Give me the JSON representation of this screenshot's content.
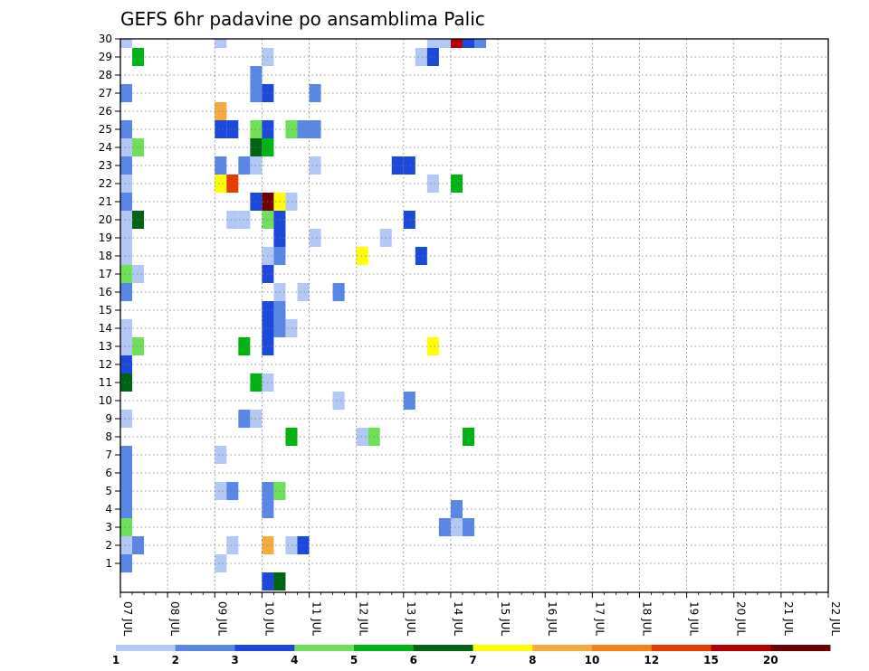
{
  "chart_data": {
    "type": "heatmap",
    "title": "GEFS 6hr padavine po ansamblima Palic",
    "xlabel": "",
    "ylabel": "",
    "x_tick_labels": [
      "07 JUL",
      "08 JUL",
      "09 JUL",
      "10 JUL",
      "11 JUL",
      "12 JUL",
      "13 JUL",
      "14 JUL",
      "15 JUL",
      "16 JUL",
      "17 JUL",
      "18 JUL",
      "19 JUL",
      "20 JUL",
      "21 JUL",
      "22 JUL"
    ],
    "y_tick_labels": [
      "1",
      "2",
      "3",
      "4",
      "5",
      "6",
      "7",
      "8",
      "9",
      "10",
      "11",
      "12",
      "13",
      "14",
      "15",
      "16",
      "17",
      "18",
      "19",
      "20",
      "21",
      "22",
      "23",
      "24",
      "25",
      "26",
      "27",
      "28",
      "29",
      "30"
    ],
    "xlim": [
      0,
      60
    ],
    "ylim": [
      0,
      30
    ],
    "grid": true,
    "step_days": 0.25,
    "colorbar": {
      "labels": [
        "1",
        "2",
        "3",
        "4",
        "5",
        "6",
        "7",
        "8",
        "10",
        "12",
        "15",
        "20"
      ],
      "colors": [
        "#b3c8f4",
        "#5a86e8",
        "#1c48dc",
        "#6fe05a",
        "#00b414",
        "#006414",
        "#ffff00",
        "#f6aa3c",
        "#f58214",
        "#e63c00",
        "#b40000",
        "#6e0000"
      ]
    },
    "cells_note": "each cell: [member, step (6h index from 07 JUL 00z), color class 0-11]",
    "cells": [
      [
        30,
        0,
        0
      ],
      [
        30,
        8,
        0
      ],
      [
        30,
        26,
        0
      ],
      [
        30,
        27,
        0
      ],
      [
        30,
        28,
        10
      ],
      [
        30,
        29,
        2
      ],
      [
        30,
        30,
        1
      ],
      [
        29,
        1,
        4
      ],
      [
        29,
        12,
        0
      ],
      [
        29,
        25,
        0
      ],
      [
        29,
        26,
        2
      ],
      [
        28,
        11,
        1
      ],
      [
        27,
        0,
        1
      ],
      [
        27,
        11,
        1
      ],
      [
        27,
        12,
        2
      ],
      [
        27,
        16,
        1
      ],
      [
        26,
        8,
        7
      ],
      [
        25,
        0,
        1
      ],
      [
        25,
        8,
        2
      ],
      [
        25,
        9,
        2
      ],
      [
        25,
        11,
        3
      ],
      [
        25,
        12,
        2
      ],
      [
        25,
        14,
        3
      ],
      [
        25,
        15,
        1
      ],
      [
        25,
        16,
        1
      ],
      [
        24,
        0,
        0
      ],
      [
        24,
        1,
        3
      ],
      [
        24,
        11,
        5
      ],
      [
        24,
        12,
        4
      ],
      [
        23,
        0,
        1
      ],
      [
        23,
        8,
        1
      ],
      [
        23,
        10,
        1
      ],
      [
        23,
        11,
        0
      ],
      [
        23,
        16,
        0
      ],
      [
        23,
        23,
        2
      ],
      [
        23,
        24,
        2
      ],
      [
        22,
        0,
        0
      ],
      [
        22,
        8,
        6
      ],
      [
        22,
        9,
        9
      ],
      [
        22,
        26,
        0
      ],
      [
        22,
        28,
        4
      ],
      [
        21,
        0,
        1
      ],
      [
        21,
        11,
        2
      ],
      [
        21,
        12,
        11
      ],
      [
        21,
        13,
        6
      ],
      [
        21,
        14,
        0
      ],
      [
        20,
        0,
        0
      ],
      [
        20,
        1,
        5
      ],
      [
        20,
        9,
        0
      ],
      [
        20,
        10,
        0
      ],
      [
        20,
        12,
        3
      ],
      [
        20,
        13,
        2
      ],
      [
        20,
        24,
        2
      ],
      [
        19,
        0,
        0
      ],
      [
        19,
        13,
        2
      ],
      [
        19,
        16,
        0
      ],
      [
        19,
        22,
        0
      ],
      [
        18,
        0,
        0
      ],
      [
        18,
        12,
        0
      ],
      [
        18,
        13,
        1
      ],
      [
        18,
        20,
        6
      ],
      [
        18,
        25,
        2
      ],
      [
        17,
        0,
        3
      ],
      [
        17,
        1,
        0
      ],
      [
        17,
        12,
        2
      ],
      [
        16,
        0,
        1
      ],
      [
        16,
        13,
        0
      ],
      [
        16,
        15,
        0
      ],
      [
        16,
        18,
        1
      ],
      [
        15,
        12,
        2
      ],
      [
        15,
        13,
        1
      ],
      [
        14,
        0,
        0
      ],
      [
        14,
        12,
        2
      ],
      [
        14,
        13,
        1
      ],
      [
        14,
        14,
        0
      ],
      [
        13,
        0,
        0
      ],
      [
        13,
        1,
        3
      ],
      [
        13,
        10,
        4
      ],
      [
        13,
        12,
        2
      ],
      [
        13,
        26,
        6
      ],
      [
        12,
        0,
        2
      ],
      [
        11,
        0,
        5
      ],
      [
        11,
        11,
        4
      ],
      [
        11,
        12,
        0
      ],
      [
        10,
        18,
        0
      ],
      [
        10,
        24,
        1
      ],
      [
        9,
        0,
        0
      ],
      [
        9,
        10,
        1
      ],
      [
        9,
        11,
        0
      ],
      [
        8,
        14,
        4
      ],
      [
        8,
        20,
        0
      ],
      [
        8,
        21,
        3
      ],
      [
        8,
        29,
        4
      ],
      [
        7,
        0,
        1
      ],
      [
        7,
        8,
        0
      ],
      [
        6,
        0,
        1
      ],
      [
        5,
        0,
        1
      ],
      [
        5,
        8,
        0
      ],
      [
        5,
        9,
        1
      ],
      [
        5,
        12,
        1
      ],
      [
        5,
        13,
        3
      ],
      [
        4,
        0,
        1
      ],
      [
        4,
        12,
        1
      ],
      [
        4,
        28,
        1
      ],
      [
        3,
        0,
        3
      ],
      [
        3,
        27,
        1
      ],
      [
        3,
        28,
        0
      ],
      [
        3,
        29,
        1
      ],
      [
        2,
        0,
        0
      ],
      [
        2,
        1,
        1
      ],
      [
        2,
        9,
        0
      ],
      [
        2,
        12,
        7
      ],
      [
        2,
        14,
        0
      ],
      [
        2,
        15,
        2
      ],
      [
        1,
        0,
        1
      ],
      [
        1,
        8,
        0
      ],
      [
        0,
        12,
        2
      ],
      [
        0,
        13,
        5
      ]
    ]
  }
}
